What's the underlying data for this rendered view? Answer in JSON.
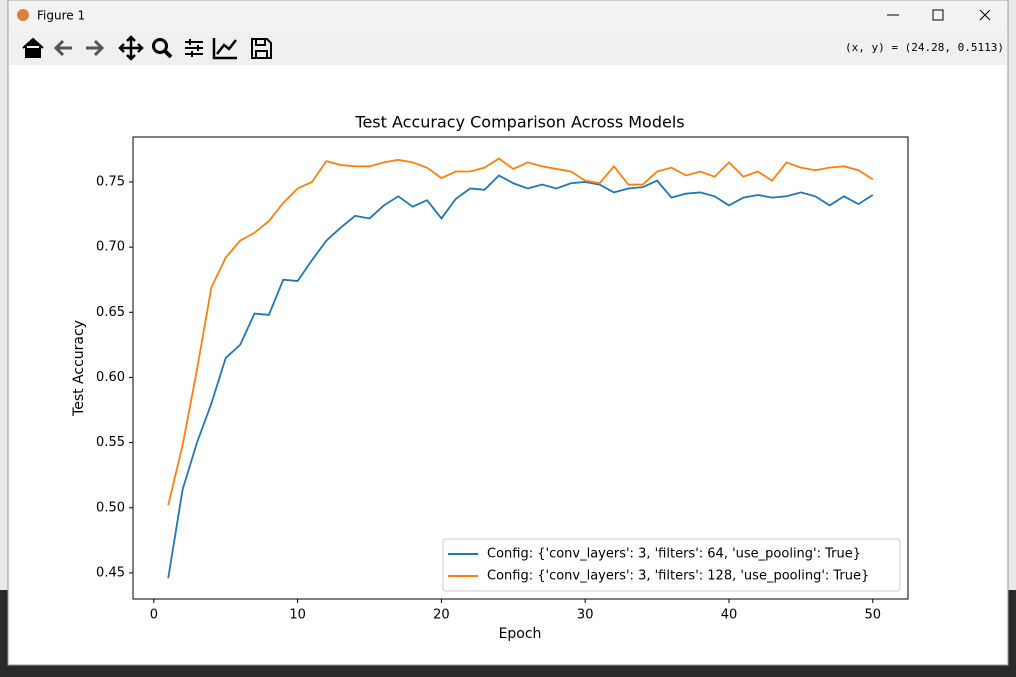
{
  "window": {
    "title": "Figure 1",
    "coordinates": "(x, y) = (24.28, 0.5113)"
  },
  "chart_data": {
    "type": "line",
    "title": "Test Accuracy Comparison Across Models",
    "xlabel": "Epoch",
    "ylabel": "Test Accuracy",
    "x": [
      1,
      2,
      3,
      4,
      5,
      6,
      7,
      8,
      9,
      10,
      11,
      12,
      13,
      14,
      15,
      16,
      17,
      18,
      19,
      20,
      21,
      22,
      23,
      24,
      25,
      26,
      27,
      28,
      29,
      30,
      31,
      32,
      33,
      34,
      35,
      36,
      37,
      38,
      39,
      40,
      41,
      42,
      43,
      44,
      45,
      46,
      47,
      48,
      49,
      50
    ],
    "series": [
      {
        "name": "Config: {'conv_layers': 3, 'filters': 64, 'use_pooling': True}",
        "color": "#1f77b4",
        "values": [
          0.446,
          0.514,
          0.55,
          0.58,
          0.615,
          0.625,
          0.649,
          0.648,
          0.675,
          0.674,
          0.69,
          0.705,
          0.715,
          0.724,
          0.722,
          0.732,
          0.739,
          0.731,
          0.736,
          0.722,
          0.737,
          0.745,
          0.744,
          0.755,
          0.749,
          0.745,
          0.748,
          0.745,
          0.749,
          0.75,
          0.748,
          0.742,
          0.745,
          0.746,
          0.751,
          0.738,
          0.741,
          0.742,
          0.739,
          0.732,
          0.738,
          0.74,
          0.738,
          0.739,
          0.742,
          0.739,
          0.732,
          0.739,
          0.733,
          0.74
        ]
      },
      {
        "name": "Config: {'conv_layers': 3, 'filters': 128, 'use_pooling': True}",
        "color": "#ff7f0e",
        "values": [
          0.502,
          0.548,
          0.606,
          0.669,
          0.692,
          0.705,
          0.711,
          0.72,
          0.734,
          0.745,
          0.75,
          0.766,
          0.763,
          0.762,
          0.762,
          0.765,
          0.767,
          0.765,
          0.761,
          0.753,
          0.758,
          0.758,
          0.761,
          0.768,
          0.76,
          0.765,
          0.762,
          0.76,
          0.758,
          0.751,
          0.749,
          0.762,
          0.748,
          0.748,
          0.758,
          0.761,
          0.755,
          0.758,
          0.754,
          0.765,
          0.754,
          0.758,
          0.751,
          0.765,
          0.761,
          0.759,
          0.761,
          0.762,
          0.759,
          0.752
        ]
      }
    ],
    "xlim": [
      -1.45,
      52.45
    ],
    "xticks": [
      0,
      10,
      20,
      30,
      40,
      50
    ],
    "ylim": [
      0.43,
      0.7845
    ],
    "yticks": [
      0.45,
      {
        "value": 0.5,
        "label": "0.50"
      },
      0.55,
      {
        "value": 0.6,
        "label": "0.60"
      },
      0.65,
      {
        "value": 0.7,
        "label": "0.70"
      },
      0.75
    ],
    "legend": "lower right"
  }
}
